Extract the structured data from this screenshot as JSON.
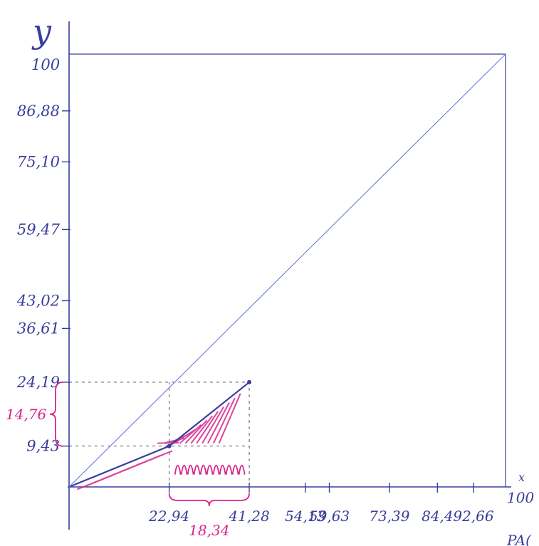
{
  "chart_data": {
    "type": "line",
    "axes": {
      "x_label": "x",
      "y_label": "y",
      "xlim": [
        0,
        100
      ],
      "ylim": [
        0,
        100
      ],
      "x_max_label": "100",
      "y_max_label": "100",
      "x_ticks": [
        {
          "value": 22.94,
          "label": "22,94"
        },
        {
          "value": 41.28,
          "label": "41,28"
        },
        {
          "value": 54.13,
          "label": "54,13"
        },
        {
          "value": 59.63,
          "label": "59,63"
        },
        {
          "value": 73.39,
          "label": "73,39"
        },
        {
          "value": 84.4,
          "label": "84,4"
        },
        {
          "value": 92.66,
          "label": "92,66"
        }
      ],
      "y_ticks": [
        {
          "value": 9.43,
          "label": "9,43"
        },
        {
          "value": 24.19,
          "label": "24,19"
        },
        {
          "value": 36.61,
          "label": "36,61"
        },
        {
          "value": 43.02,
          "label": "43,02"
        },
        {
          "value": 59.47,
          "label": "59,47"
        },
        {
          "value": 75.1,
          "label": "75,10"
        },
        {
          "value": 86.88,
          "label": "86,88"
        }
      ],
      "grid": false
    },
    "series": [
      {
        "values": [
          {
            "x": 0,
            "y": 0
          },
          {
            "x": 22.94,
            "y": 9.43
          },
          {
            "x": 41.28,
            "y": 24.19
          }
        ],
        "color": "#3a3d9c"
      },
      {
        "values": [
          {
            "x": 0,
            "y": 0
          },
          {
            "x": 100,
            "y": 100
          }
        ],
        "color": "#6f7ad8"
      }
    ],
    "guides": [
      {
        "type": "horizontal",
        "y": 24.19,
        "x_from": 0,
        "x_to": 41.28
      },
      {
        "type": "horizontal",
        "y": 9.43,
        "x_from": 0,
        "x_to": 41.28
      },
      {
        "type": "vertical",
        "x": 22.94,
        "y_from": 0,
        "y_to": 24.19
      },
      {
        "type": "vertical",
        "x": 41.28,
        "y_from": 0,
        "y_to": 24.19
      }
    ],
    "annotations": [
      {
        "text": "14,76",
        "kind": "delta_y",
        "from": 9.43,
        "to": 24.19,
        "color": "#d6248c"
      },
      {
        "text": "18,34",
        "kind": "delta_x",
        "from": 22.94,
        "to": 41.28,
        "color": "#d6248c"
      }
    ],
    "partial_text": "PA("
  },
  "colors": {
    "ink": "#3a3d9c",
    "light_ink": "#6f7ad8",
    "accent": "#d6248c"
  }
}
